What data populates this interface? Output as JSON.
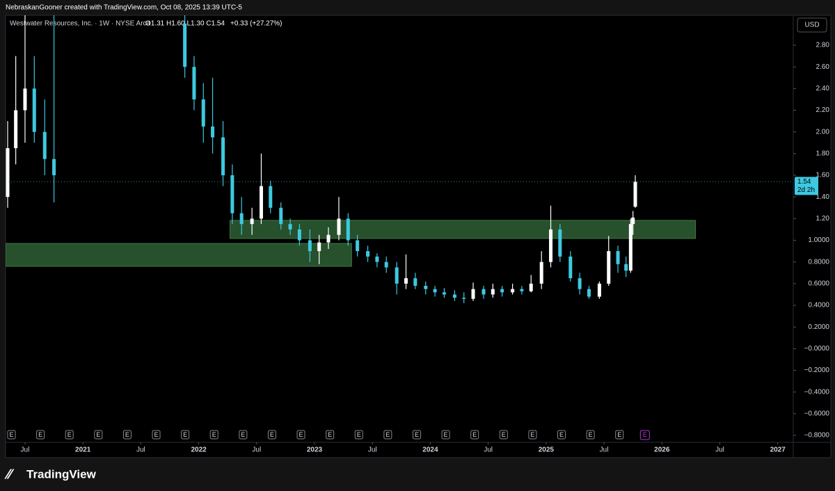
{
  "header": {
    "credit": "NebraskanGooner created with TradingView.com, Oct 08, 2025 13:39 UTC-5",
    "logo": "TradingView"
  },
  "chart_data": {
    "type": "candlestick",
    "symbol": "Westwater Resources, Inc. · 1W · NYSE Arca",
    "ohlc_text": "O1.31 H1.60 L1.30 C1.54",
    "change_text": "+0.33 (+27.27%)",
    "currency": "USD",
    "last_price_label": "1.54",
    "countdown": "2d 2h",
    "earnings_marker": "E",
    "up_color": "#ffffff",
    "down_color": "#3dc9e0",
    "zone_color": "#2e5e34",
    "zones": [
      {
        "x": [
          2022.27,
          2026.29
        ],
        "y": [
          1.017,
          1.184
        ]
      },
      {
        "x": [
          2020.332,
          2023.32
        ],
        "y": [
          0.76,
          0.971
        ]
      }
    ],
    "candles": {
      "x": [
        2020.35,
        2020.42,
        2020.5,
        2020.58,
        2020.67,
        2020.75,
        2021.88,
        2021.96,
        2022.04,
        2022.12,
        2022.21,
        2022.29,
        2022.37,
        2022.46,
        2022.54,
        2022.62,
        2022.71,
        2022.79,
        2022.87,
        2022.96,
        2023.04,
        2023.12,
        2023.21,
        2023.29,
        2023.37,
        2023.46,
        2023.54,
        2023.62,
        2023.71,
        2023.79,
        2023.87,
        2023.96,
        2024.04,
        2024.12,
        2024.21,
        2024.29,
        2024.37,
        2024.46,
        2024.54,
        2024.62,
        2024.71,
        2024.79,
        2024.87,
        2024.96,
        2025.04,
        2025.12,
        2025.21,
        2025.29,
        2025.37,
        2025.46,
        2025.54,
        2025.62,
        2025.69,
        2025.73,
        2025.75,
        2025.77
      ],
      "open": [
        1.4,
        1.85,
        2.2,
        2.4,
        2.0,
        1.75,
        3.0,
        2.6,
        2.3,
        2.05,
        1.95,
        1.6,
        1.25,
        1.15,
        1.2,
        1.5,
        1.3,
        1.15,
        1.1,
        1.0,
        0.9,
        0.98,
        1.05,
        1.2,
        1.0,
        0.9,
        0.85,
        0.8,
        0.75,
        0.6,
        0.65,
        0.58,
        0.55,
        0.52,
        0.5,
        0.47,
        0.46,
        0.55,
        0.5,
        0.55,
        0.52,
        0.55,
        0.53,
        0.6,
        0.8,
        1.1,
        0.85,
        0.65,
        0.55,
        0.48,
        0.6,
        0.9,
        0.78,
        0.72,
        1.15,
        1.31
      ],
      "high": [
        2.1,
        2.7,
        3.1,
        2.7,
        2.3,
        3.1,
        3.1,
        2.7,
        2.45,
        2.5,
        2.1,
        1.7,
        1.4,
        1.3,
        1.8,
        1.55,
        1.35,
        1.2,
        1.15,
        1.1,
        1.05,
        1.12,
        1.4,
        1.25,
        1.05,
        0.95,
        0.88,
        0.85,
        0.8,
        0.87,
        0.7,
        0.62,
        0.58,
        0.56,
        0.54,
        0.52,
        0.61,
        0.58,
        0.6,
        0.58,
        0.6,
        0.58,
        0.68,
        0.9,
        1.32,
        1.15,
        0.9,
        0.7,
        0.58,
        0.62,
        1.04,
        0.95,
        0.85,
        1.2,
        1.27,
        1.6
      ],
      "low": [
        1.3,
        1.7,
        1.9,
        1.9,
        1.6,
        1.35,
        2.5,
        2.2,
        1.9,
        1.8,
        1.5,
        1.15,
        1.05,
        1.05,
        1.15,
        1.25,
        1.1,
        1.05,
        0.95,
        0.8,
        0.78,
        0.92,
        1.0,
        0.95,
        0.85,
        0.8,
        0.75,
        0.7,
        0.5,
        0.55,
        0.55,
        0.5,
        0.48,
        0.47,
        0.44,
        0.42,
        0.44,
        0.46,
        0.47,
        0.48,
        0.5,
        0.5,
        0.52,
        0.55,
        0.75,
        0.8,
        0.62,
        0.5,
        0.46,
        0.46,
        0.58,
        0.7,
        0.66,
        0.7,
        1.05,
        1.3
      ],
      "close": [
        1.85,
        2.2,
        2.4,
        2.0,
        1.75,
        1.6,
        2.6,
        2.3,
        2.05,
        1.95,
        1.6,
        1.25,
        1.15,
        1.2,
        1.5,
        1.3,
        1.15,
        1.1,
        1.0,
        0.9,
        0.98,
        1.05,
        1.2,
        1.0,
        0.9,
        0.85,
        0.8,
        0.75,
        0.6,
        0.65,
        0.58,
        0.55,
        0.52,
        0.5,
        0.47,
        0.46,
        0.55,
        0.5,
        0.55,
        0.52,
        0.55,
        0.53,
        0.6,
        0.8,
        1.1,
        0.85,
        0.65,
        0.55,
        0.48,
        0.6,
        0.9,
        0.78,
        0.72,
        1.15,
        1.21,
        1.54
      ]
    },
    "ylim": [
      -0.864,
      3.076
    ],
    "yticks": [
      {
        "value": 2.8,
        "label": "2.80"
      },
      {
        "value": 2.6,
        "label": "2.60"
      },
      {
        "value": 2.4,
        "label": "2.40"
      },
      {
        "value": 2.2,
        "label": "2.20"
      },
      {
        "value": 2.0,
        "label": "2.00"
      },
      {
        "value": 1.8,
        "label": "1.80"
      },
      {
        "value": 1.6,
        "label": "1.60"
      },
      {
        "value": 1.4,
        "label": "1.40"
      },
      {
        "value": 1.2,
        "label": "1.20"
      },
      {
        "value": 1.0,
        "label": "1.0000"
      },
      {
        "value": 0.8,
        "label": "0.8000"
      },
      {
        "value": 0.6,
        "label": "0.6000"
      },
      {
        "value": 0.4,
        "label": "0.4000"
      },
      {
        "value": 0.2,
        "label": "0.2000"
      },
      {
        "value": 0,
        "label": "−0.0000"
      },
      {
        "value": -0.2,
        "label": "−0.2000"
      },
      {
        "value": -0.4,
        "label": "−0.4000"
      },
      {
        "value": -0.6,
        "label": "−0.6000"
      },
      {
        "value": -0.8,
        "label": "−0.8000"
      }
    ],
    "xlim": [
      2020.332,
      2027.134
    ],
    "xticks": [
      {
        "value": 2020.5,
        "label": "Jul"
      },
      2021,
      {
        "value": 2021.5,
        "label": "Jul"
      },
      2022,
      {
        "value": 2022.5,
        "label": "Jul"
      },
      2023,
      {
        "value": 2023.5,
        "label": "Jul"
      },
      2024,
      {
        "value": 2024.5,
        "label": "Jul"
      },
      2025,
      {
        "value": 2025.5,
        "label": "Jul"
      },
      2026,
      {
        "value": 2026.5,
        "label": "Jul"
      },
      2027
    ]
  }
}
